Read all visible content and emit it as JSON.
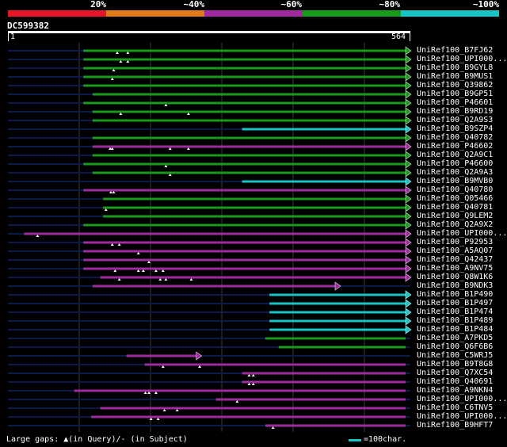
{
  "legend": {
    "labels": [
      "20%",
      "~40%",
      "~60%",
      "~80%",
      "~100%"
    ],
    "colors": [
      "#e8142a",
      "#e07a1c",
      "#a02ba0",
      "#1a9a1a",
      "#17c5c5"
    ]
  },
  "query": {
    "id": "DC599382",
    "start_label": "1",
    "end_label": "564",
    "length": 564
  },
  "footer": {
    "large_gaps": "Large gaps: ▲(in Query)/- (in Subject)",
    "scale": "=100char."
  },
  "hits": [
    {
      "label": "UniRef100_B7FJ62",
      "start": 107,
      "end": 564,
      "color": "green",
      "arrow": true,
      "gaps": [
        155,
        170
      ]
    },
    {
      "label": "UniRef100_UPI000...",
      "start": 107,
      "end": 564,
      "color": "green",
      "arrow": true,
      "gaps": [
        160,
        170
      ]
    },
    {
      "label": "UniRef100_B9GYL8",
      "start": 107,
      "end": 564,
      "color": "green",
      "arrow": true,
      "gaps": [
        150
      ]
    },
    {
      "label": "UniRef100_B9MUS1",
      "start": 107,
      "end": 564,
      "color": "green",
      "arrow": true,
      "gaps": [
        148
      ]
    },
    {
      "label": "UniRef100_Q39862",
      "start": 107,
      "end": 564,
      "color": "green",
      "arrow": true,
      "gaps": []
    },
    {
      "label": "UniRef100_B9GP51",
      "start": 120,
      "end": 564,
      "color": "green",
      "arrow": true,
      "gaps": []
    },
    {
      "label": "UniRef100_P46601",
      "start": 107,
      "end": 564,
      "color": "green",
      "arrow": true,
      "gaps": [
        224
      ]
    },
    {
      "label": "UniRef100_B9RD19",
      "start": 120,
      "end": 564,
      "color": "green",
      "arrow": true,
      "gaps": [
        160,
        256
      ]
    },
    {
      "label": "UniRef100_Q2A9S3",
      "start": 120,
      "end": 564,
      "color": "green",
      "arrow": true,
      "gaps": []
    },
    {
      "label": "UniRef100_B9SZP4",
      "start": 332,
      "end": 564,
      "color": "cyan",
      "arrow": true,
      "gaps": []
    },
    {
      "label": "UniRef100_Q40782",
      "start": 120,
      "end": 564,
      "color": "green",
      "arrow": true,
      "gaps": []
    },
    {
      "label": "UniRef100_P46602",
      "start": 120,
      "end": 564,
      "color": "purple",
      "arrow": true,
      "gaps": [
        145,
        148,
        230,
        256
      ]
    },
    {
      "label": "UniRef100_Q2A9C1",
      "start": 120,
      "end": 564,
      "color": "green",
      "arrow": true,
      "gaps": []
    },
    {
      "label": "UniRef100_P46600",
      "start": 107,
      "end": 564,
      "color": "green",
      "arrow": true,
      "gaps": [
        224
      ]
    },
    {
      "label": "UniRef100_Q2A9A3",
      "start": 120,
      "end": 564,
      "color": "green",
      "arrow": true,
      "gaps": [
        230
      ]
    },
    {
      "label": "UniRef100_B9MVB0",
      "start": 332,
      "end": 564,
      "color": "cyan",
      "arrow": true,
      "gaps": []
    },
    {
      "label": "UniRef100_Q40780",
      "start": 107,
      "end": 564,
      "color": "purple",
      "arrow": true,
      "gaps": [
        146,
        150
      ]
    },
    {
      "label": "UniRef100_Q05466",
      "start": 135,
      "end": 564,
      "color": "green",
      "arrow": true,
      "gaps": []
    },
    {
      "label": "UniRef100_Q40781",
      "start": 135,
      "end": 564,
      "color": "green",
      "arrow": true,
      "gaps": [
        139
      ]
    },
    {
      "label": "UniRef100_Q9LEM2",
      "start": 135,
      "end": 564,
      "color": "green",
      "arrow": true,
      "gaps": []
    },
    {
      "label": "UniRef100_Q2A9X2",
      "start": 107,
      "end": 564,
      "color": "green",
      "arrow": true,
      "gaps": []
    },
    {
      "label": "UniRef100_UPI000...",
      "start": 23,
      "end": 564,
      "color": "purple",
      "arrow": true,
      "gaps": [
        42
      ]
    },
    {
      "label": "UniRef100_P92953",
      "start": 107,
      "end": 564,
      "color": "purple",
      "arrow": true,
      "gaps": [
        148,
        158
      ]
    },
    {
      "label": "UniRef100_A5AQ07",
      "start": 107,
      "end": 564,
      "color": "purple",
      "arrow": true,
      "gaps": [
        185
      ]
    },
    {
      "label": "UniRef100_Q42437",
      "start": 107,
      "end": 564,
      "color": "purple",
      "arrow": true,
      "gaps": [
        200
      ]
    },
    {
      "label": "UniRef100_A9NV75",
      "start": 107,
      "end": 564,
      "color": "purple",
      "arrow": true,
      "gaps": [
        152,
        185,
        192,
        210,
        220
      ]
    },
    {
      "label": "UniRef100_Q8W1K6",
      "start": 131,
      "end": 564,
      "color": "purple",
      "arrow": true,
      "gaps": [
        158,
        216,
        224,
        260
      ]
    },
    {
      "label": "UniRef100_B9NDK3",
      "start": 120,
      "end": 464,
      "color": "purple",
      "arrow": true,
      "gaps": []
    },
    {
      "label": "UniRef100_B1P490",
      "start": 371,
      "end": 564,
      "color": "cyan",
      "arrow": true,
      "gaps": []
    },
    {
      "label": "UniRef100_B1P497",
      "start": 371,
      "end": 564,
      "color": "cyan",
      "arrow": true,
      "gaps": []
    },
    {
      "label": "UniRef100_B1P474",
      "start": 371,
      "end": 564,
      "color": "cyan",
      "arrow": true,
      "gaps": []
    },
    {
      "label": "UniRef100_B1P489",
      "start": 371,
      "end": 564,
      "color": "cyan",
      "arrow": true,
      "gaps": []
    },
    {
      "label": "UniRef100_B1P484",
      "start": 371,
      "end": 564,
      "color": "cyan",
      "arrow": true,
      "gaps": []
    },
    {
      "label": "UniRef100_A7PKD5",
      "start": 365,
      "end": 564,
      "color": "green",
      "arrow": false,
      "gaps": []
    },
    {
      "label": "UniRef100_Q6F6B6",
      "start": 384,
      "end": 564,
      "color": "green",
      "arrow": false,
      "gaps": []
    },
    {
      "label": "UniRef100_C5WRJ5",
      "start": 168,
      "end": 267,
      "color": "purple",
      "arrow": true,
      "gaps": []
    },
    {
      "label": "UniRef100_B9T8G8",
      "start": 194,
      "end": 564,
      "color": "purple",
      "arrow": false,
      "gaps": [
        220,
        272
      ]
    },
    {
      "label": "UniRef100_Q7XC54",
      "start": 332,
      "end": 564,
      "color": "purple",
      "arrow": false,
      "gaps": [
        342,
        348
      ]
    },
    {
      "label": "UniRef100_Q40691",
      "start": 332,
      "end": 564,
      "color": "purple",
      "arrow": false,
      "gaps": [
        342,
        348
      ]
    },
    {
      "label": "UniRef100_A9NKN4",
      "start": 94,
      "end": 564,
      "color": "purple",
      "arrow": false,
      "gaps": [
        195,
        200,
        210
      ]
    },
    {
      "label": "UniRef100_UPI000...",
      "start": 295,
      "end": 564,
      "color": "purple",
      "arrow": false,
      "gaps": [
        325
      ]
    },
    {
      "label": "UniRef100_C6TNV5",
      "start": 131,
      "end": 564,
      "color": "purple",
      "arrow": false,
      "gaps": [
        222,
        240
      ]
    },
    {
      "label": "UniRef100_UPI000...",
      "start": 118,
      "end": 564,
      "color": "purple",
      "arrow": false,
      "gaps": [
        203,
        213
      ]
    },
    {
      "label": "UniRef100_B9HFT7",
      "start": 365,
      "end": 564,
      "color": "purple",
      "arrow": false,
      "gaps": [
        376
      ]
    }
  ]
}
